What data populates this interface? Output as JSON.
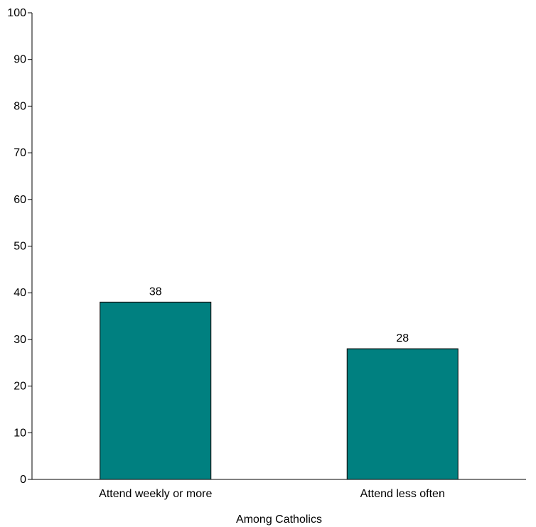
{
  "chart_data": {
    "type": "bar",
    "categories": [
      "Attend weekly or more",
      "Attend less often"
    ],
    "values": [
      38,
      28
    ],
    "data_labels": [
      "38",
      "28"
    ],
    "xlabel": "Among Catholics",
    "ylabel": "",
    "ylim": [
      0,
      100
    ],
    "yticks": [
      0,
      10,
      20,
      30,
      40,
      50,
      60,
      70,
      80,
      90,
      100
    ],
    "grid": false,
    "legend": "none",
    "bar_color": "#008080",
    "bar_edge_color": "#000000"
  }
}
